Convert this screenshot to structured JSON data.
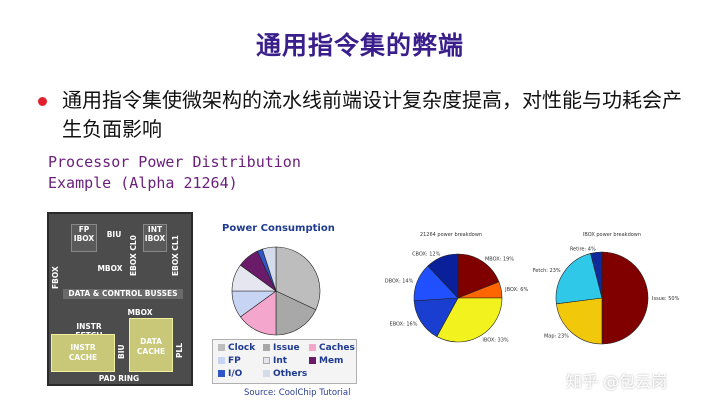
{
  "title": "通用指令集的弊端",
  "bullet": "通用指令集使微架构的流水线前端设计复杂度提高，对性能与功耗会产生负面影响",
  "subtitle_lines": [
    "Processor Power Distribution",
    "Example (Alpha 21264)"
  ],
  "die_blocks": {
    "fp_ibox": "FP\nIBOX",
    "biu": "BIU",
    "int_ibox": "INT\nIBOX",
    "fbox": "FBOX",
    "mbox_top": "MBOX",
    "ebox_cl0": "EBOX CL0",
    "ebox_cl1": "EBOX CL1",
    "busses": "DATA & CONTROL BUSSES",
    "instr_fetch": "INSTR FETCH",
    "mbox_mid": "MBOX",
    "instr_cache": "INSTR\nCACHE",
    "data_cache": "DATA\nCACHE",
    "biu_side": "BIU",
    "pll": "PLL",
    "pad_ring": "PAD RING"
  },
  "power_consumption": {
    "title": "Power Consumption",
    "legend": [
      {
        "label": "Clock",
        "color": "#bdbdbd"
      },
      {
        "label": "Issue",
        "color": "#a8a8a8"
      },
      {
        "label": "Caches",
        "color": "#f5a6cc"
      },
      {
        "label": "FP",
        "color": "#c8d4f4"
      },
      {
        "label": "Int",
        "color": "#e6e6f0"
      },
      {
        "label": "Mem",
        "color": "#6a1b6a"
      },
      {
        "label": "I/O",
        "color": "#2f56c4"
      },
      {
        "label": "Others",
        "color": "#d4dcec"
      }
    ]
  },
  "chart_data": [
    {
      "type": "pie",
      "title": "Power Consumption",
      "categories": [
        "Clock",
        "Issue",
        "Caches",
        "FP",
        "Int",
        "Mem",
        "I/O",
        "Others"
      ],
      "values": [
        32,
        18,
        15,
        10,
        10,
        8,
        2,
        5
      ]
    },
    {
      "type": "pie",
      "title": "21264 power breakdown",
      "categories": [
        "MBOX",
        "JBOX",
        "IBOX",
        "EBOX",
        "DBOX",
        "CBOX"
      ],
      "labels": [
        "MBOX: 19%",
        "JBOX: 6%",
        "IBOX: 33%",
        "EBOX: 16%",
        "DBOX: 14%",
        "CBOX: 12%"
      ],
      "values": [
        19,
        6,
        33,
        16,
        14,
        12
      ],
      "colors": [
        "#800000",
        "#ff6600",
        "#f2f21e",
        "#1a3fd0",
        "#2050ff",
        "#0a1f9a"
      ]
    },
    {
      "type": "pie",
      "title": "IBOX power breakdown",
      "categories": [
        "Issue",
        "Map",
        "Fetch",
        "Retire"
      ],
      "labels": [
        "Issue: 50%",
        "Map: 23%",
        "Fetch: 23%",
        "Retire: 4%"
      ],
      "values": [
        50,
        23,
        23,
        4
      ],
      "colors": [
        "#800000",
        "#f2c80a",
        "#30c8e8",
        "#102a9a"
      ]
    }
  ],
  "source": "Source: CoolChip Tutorial",
  "watermark": "知乎 @包云岗"
}
